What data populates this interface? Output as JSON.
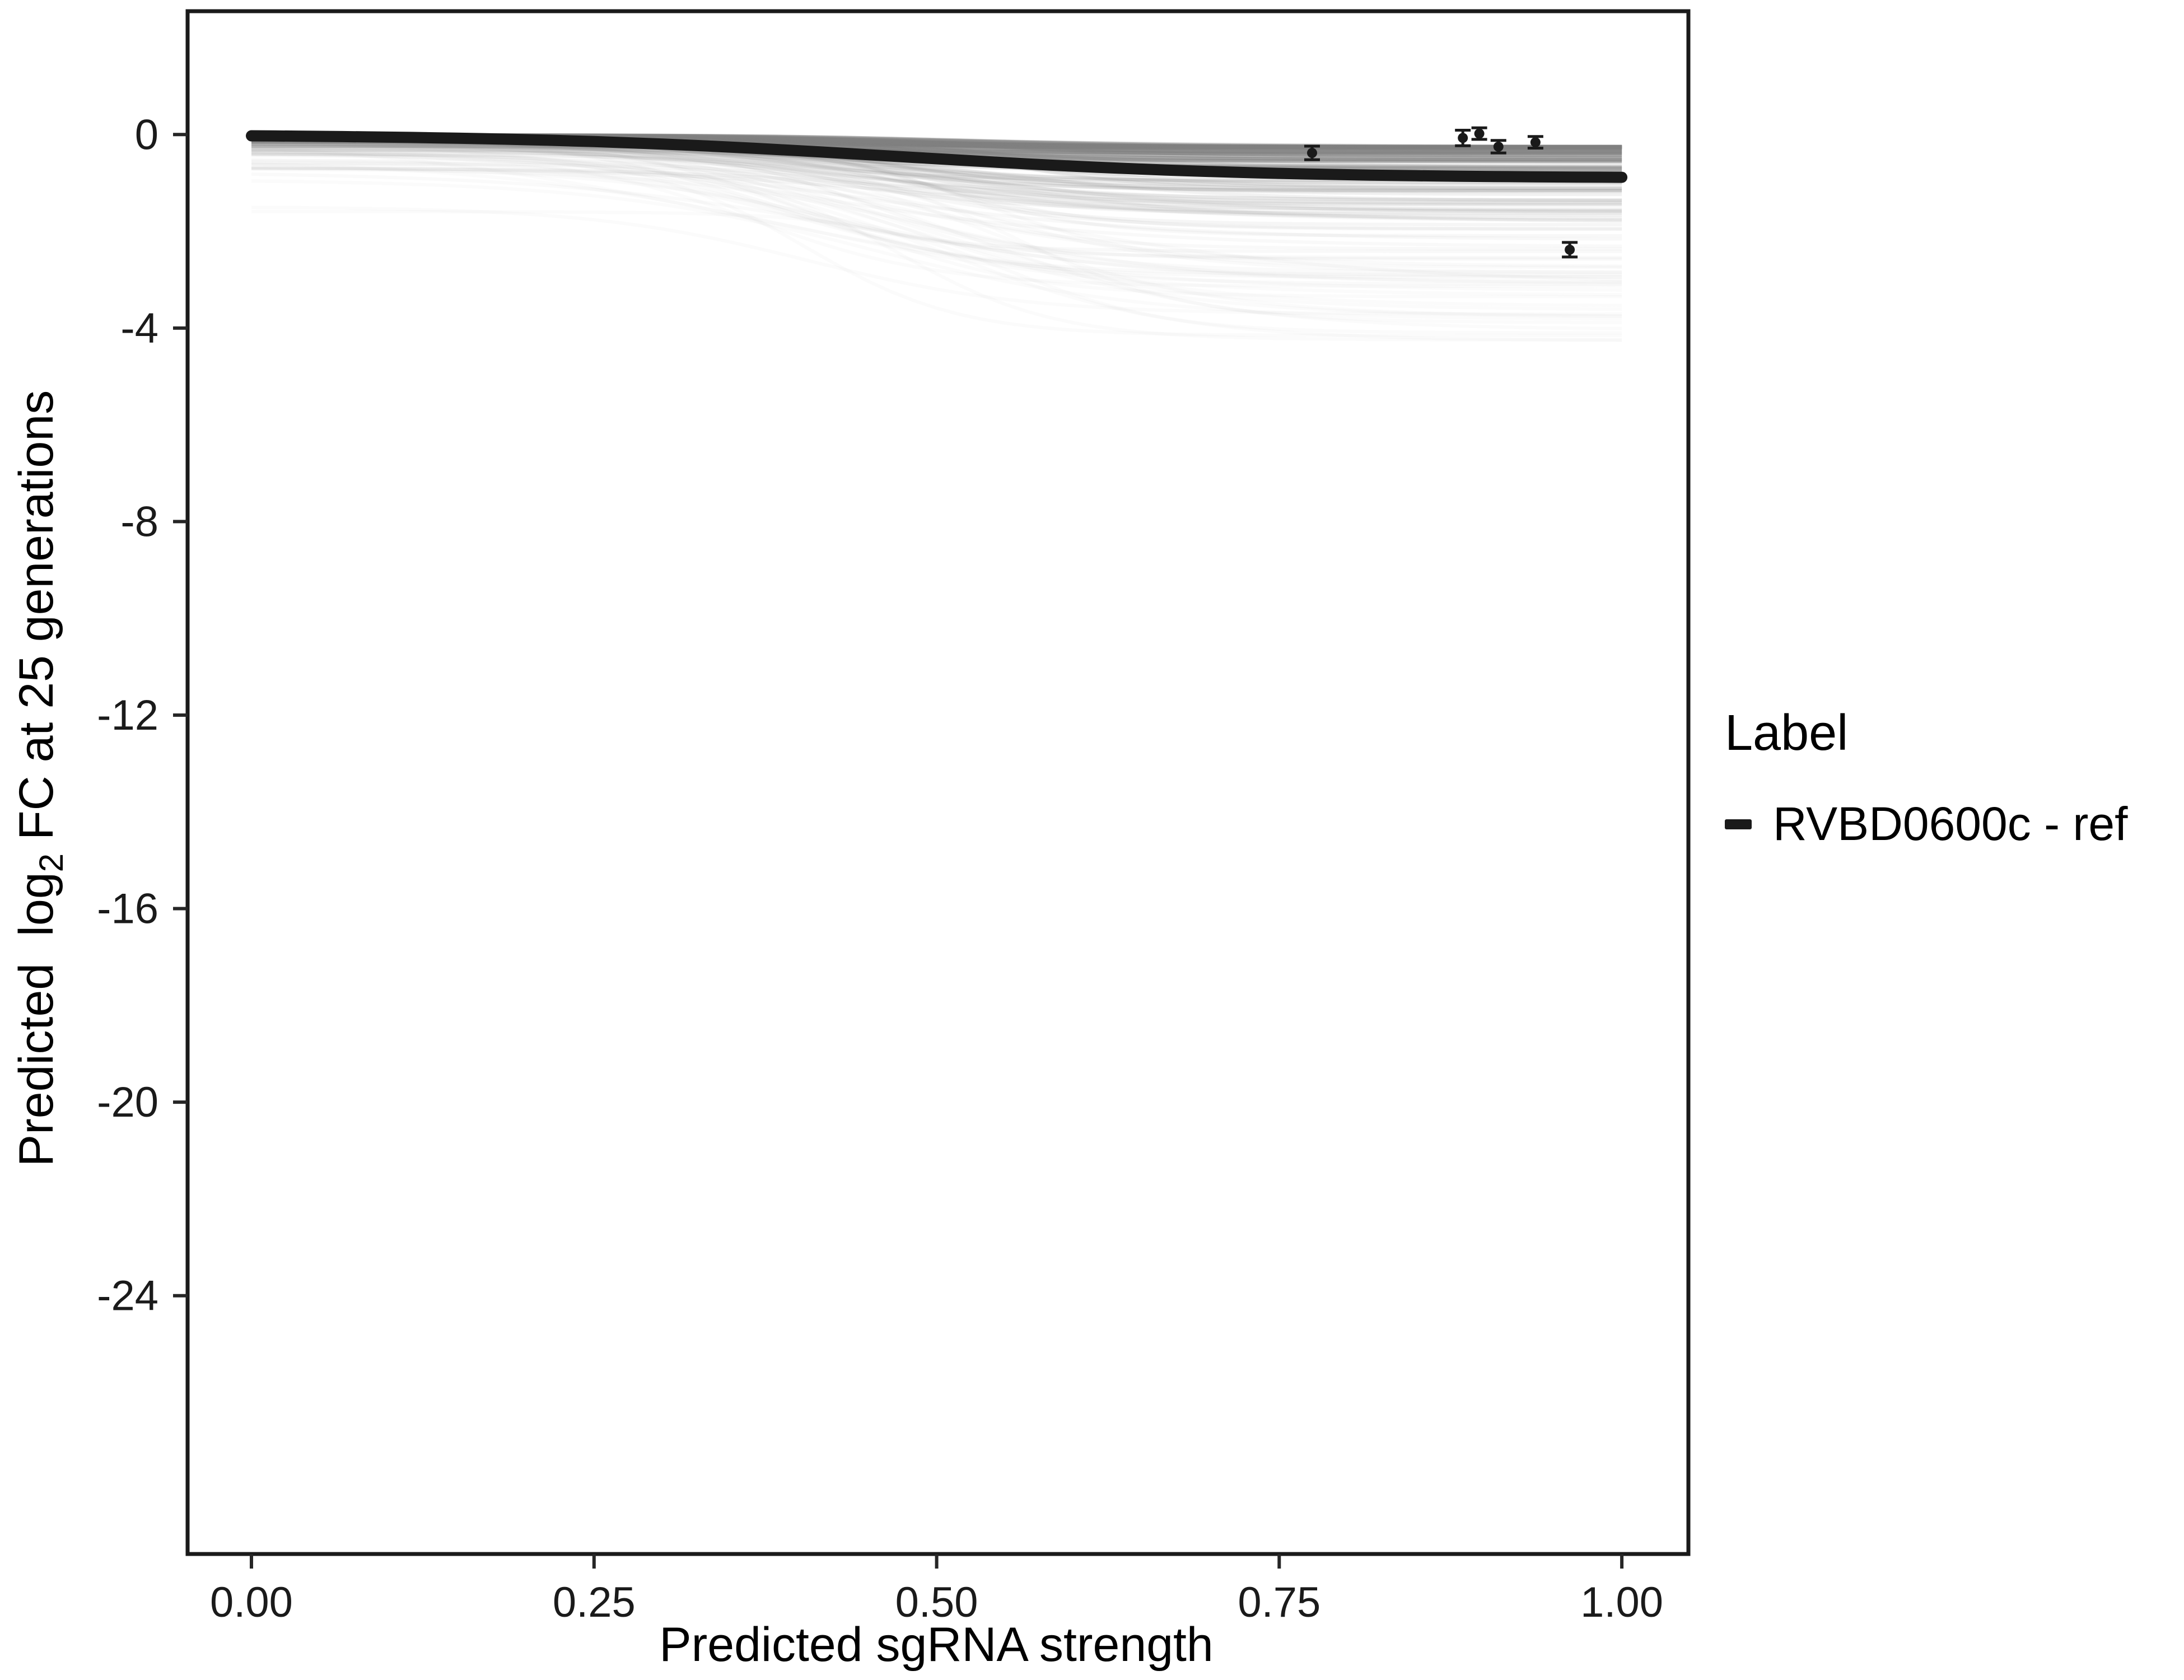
{
  "chart_data": {
    "type": "line",
    "title": "",
    "xlabel": "Predicted sgRNA strength",
    "ylabel_parts": {
      "prefix": "Predicted  log",
      "sub": "2",
      "suffix": " FC at 25 generations"
    },
    "xlim": [
      -0.0466,
      1.0486
    ],
    "ylim": [
      -29.34,
      2.55
    ],
    "x_ticks": [
      0,
      0.25,
      0.5,
      0.75,
      1.0
    ],
    "x_tick_labels": [
      "0.00",
      "0.25",
      "0.50",
      "0.75",
      "1.00"
    ],
    "y_ticks": [
      0,
      -4,
      -8,
      -12,
      -16,
      -20,
      -24
    ],
    "y_tick_labels": [
      "0",
      "-4",
      "-8",
      "-12",
      "-16",
      "-20",
      "-24"
    ],
    "grid": "off",
    "panel_border_color": "#1a1a1a",
    "tick_color": "#262626",
    "background": "#ffffff",
    "legend": {
      "position": "right",
      "title": "Label",
      "entries": [
        {
          "label": "RVBD0600c - ref",
          "color": "#1a1a1a"
        }
      ]
    },
    "ref_curve": {
      "name": "RVBD0600c - ref",
      "color": "#1a1a1a",
      "model": "sigmoid",
      "baseline": 0,
      "asymptote": -0.9,
      "inflection": 0.47,
      "steepness": 7.5
    },
    "ensemble": {
      "description": "posterior draw curves, shallow sigmoids from 0 toward asymptote",
      "count": 150,
      "seed": 42,
      "color": "#808080",
      "asymptote_range": [
        -0.25,
        -4.3
      ],
      "inflection_range": [
        0.35,
        0.56
      ],
      "steepness_range": [
        7,
        18
      ],
      "baseline_fraction_max": 0.5
    },
    "points": [
      {
        "x": 0.774,
        "y": -0.38,
        "err": 0.14
      },
      {
        "x": 0.884,
        "y": -0.07,
        "err": 0.16
      },
      {
        "x": 0.896,
        "y": 0.02,
        "err": 0.12
      },
      {
        "x": 0.91,
        "y": -0.25,
        "err": 0.13
      },
      {
        "x": 0.937,
        "y": -0.16,
        "err": 0.12
      },
      {
        "x": 0.962,
        "y": -2.38,
        "err": 0.15
      }
    ]
  }
}
